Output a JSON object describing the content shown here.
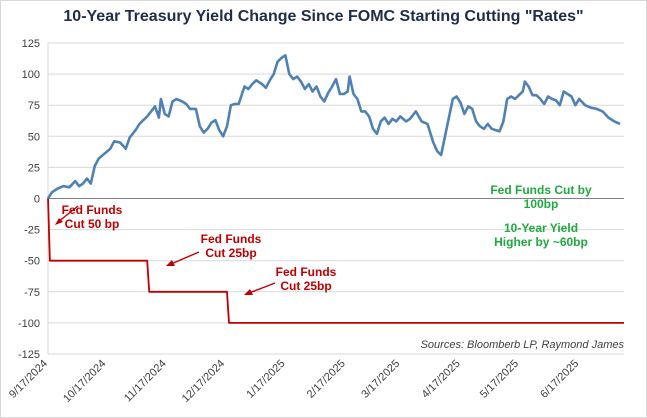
{
  "chart_data": {
    "type": "line",
    "title": "10-Year Treasury Yield Change Since FOMC Starting Cutting \"Rates\"",
    "ylim": [
      -125,
      125
    ],
    "yticks": [
      125,
      100,
      75,
      50,
      25,
      0,
      -25,
      -50,
      -75,
      -100,
      -125
    ],
    "xlim": [
      "2024-09-17",
      "2025-07-10"
    ],
    "xticks": [
      "9/17/2024",
      "10/17/2024",
      "11/17/2024",
      "12/17/2024",
      "1/17/2025",
      "2/17/2025",
      "3/17/2025",
      "4/17/2025",
      "5/17/2025",
      "6/17/2025"
    ],
    "grid": true,
    "source": "Sources: Bloomberb LP, Raymond James",
    "series": [
      {
        "color": "#4f81b5",
        "points": [
          [
            "2024-09-17",
            0
          ],
          [
            "2024-09-19",
            5
          ],
          [
            "2024-09-22",
            8
          ],
          [
            "2024-09-25",
            10
          ],
          [
            "2024-09-28",
            9
          ],
          [
            "2024-10-01",
            14
          ],
          [
            "2024-10-03",
            10
          ],
          [
            "2024-10-05",
            12
          ],
          [
            "2024-10-07",
            16
          ],
          [
            "2024-10-09",
            12
          ],
          [
            "2024-10-11",
            26
          ],
          [
            "2024-10-13",
            32
          ],
          [
            "2024-10-16",
            36
          ],
          [
            "2024-10-19",
            40
          ],
          [
            "2024-10-21",
            46
          ],
          [
            "2024-10-24",
            45
          ],
          [
            "2024-10-27",
            40
          ],
          [
            "2024-10-29",
            49
          ],
          [
            "2024-11-01",
            55
          ],
          [
            "2024-11-03",
            60
          ],
          [
            "2024-11-05",
            63
          ],
          [
            "2024-11-07",
            66
          ],
          [
            "2024-11-09",
            70
          ],
          [
            "2024-11-11",
            74
          ],
          [
            "2024-11-13",
            65
          ],
          [
            "2024-11-14",
            80
          ],
          [
            "2024-11-16",
            68
          ],
          [
            "2024-11-18",
            66
          ],
          [
            "2024-11-20",
            78
          ],
          [
            "2024-11-22",
            80
          ],
          [
            "2024-11-25",
            78
          ],
          [
            "2024-11-27",
            76
          ],
          [
            "2024-11-29",
            72
          ],
          [
            "2024-12-02",
            72
          ],
          [
            "2024-12-04",
            58
          ],
          [
            "2024-12-06",
            53
          ],
          [
            "2024-12-08",
            56
          ],
          [
            "2024-12-10",
            61
          ],
          [
            "2024-12-12",
            63
          ],
          [
            "2024-12-14",
            55
          ],
          [
            "2024-12-16",
            50
          ],
          [
            "2024-12-18",
            58
          ],
          [
            "2024-12-20",
            75
          ],
          [
            "2024-12-22",
            76
          ],
          [
            "2024-12-24",
            76
          ],
          [
            "2024-12-27",
            90
          ],
          [
            "2024-12-29",
            88
          ],
          [
            "2024-12-31",
            92
          ],
          [
            "2025-01-02",
            95
          ],
          [
            "2025-01-05",
            92
          ],
          [
            "2025-01-07",
            89
          ],
          [
            "2025-01-09",
            95
          ],
          [
            "2025-01-11",
            100
          ],
          [
            "2025-01-13",
            110
          ],
          [
            "2025-01-15",
            113
          ],
          [
            "2025-01-17",
            115
          ],
          [
            "2025-01-19",
            100
          ],
          [
            "2025-01-21",
            96
          ],
          [
            "2025-01-23",
            98
          ],
          [
            "2025-01-25",
            94
          ],
          [
            "2025-01-27",
            88
          ],
          [
            "2025-01-29",
            92
          ],
          [
            "2025-01-31",
            86
          ],
          [
            "2025-02-02",
            90
          ],
          [
            "2025-02-04",
            82
          ],
          [
            "2025-02-06",
            78
          ],
          [
            "2025-02-08",
            85
          ],
          [
            "2025-02-10",
            90
          ],
          [
            "2025-02-12",
            96
          ],
          [
            "2025-02-14",
            84
          ],
          [
            "2025-02-16",
            84
          ],
          [
            "2025-02-18",
            86
          ],
          [
            "2025-02-19",
            98
          ],
          [
            "2025-02-21",
            84
          ],
          [
            "2025-02-23",
            80
          ],
          [
            "2025-02-25",
            70
          ],
          [
            "2025-02-27",
            70
          ],
          [
            "2025-03-01",
            66
          ],
          [
            "2025-03-03",
            56
          ],
          [
            "2025-03-05",
            52
          ],
          [
            "2025-03-07",
            62
          ],
          [
            "2025-03-09",
            65
          ],
          [
            "2025-03-11",
            60
          ],
          [
            "2025-03-13",
            64
          ],
          [
            "2025-03-15",
            62
          ],
          [
            "2025-03-17",
            66
          ],
          [
            "2025-03-20",
            62
          ],
          [
            "2025-03-22",
            64
          ],
          [
            "2025-03-25",
            70
          ],
          [
            "2025-03-28",
            62
          ],
          [
            "2025-03-31",
            60
          ],
          [
            "2025-04-03",
            45
          ],
          [
            "2025-04-05",
            38
          ],
          [
            "2025-04-07",
            35
          ],
          [
            "2025-04-09",
            50
          ],
          [
            "2025-04-11",
            65
          ],
          [
            "2025-04-13",
            80
          ],
          [
            "2025-04-15",
            82
          ],
          [
            "2025-04-17",
            77
          ],
          [
            "2025-04-19",
            68
          ],
          [
            "2025-04-21",
            74
          ],
          [
            "2025-04-23",
            72
          ],
          [
            "2025-04-25",
            62
          ],
          [
            "2025-04-27",
            58
          ],
          [
            "2025-04-29",
            56
          ],
          [
            "2025-05-01",
            60
          ],
          [
            "2025-05-03",
            56
          ],
          [
            "2025-05-05",
            55
          ],
          [
            "2025-05-07",
            54
          ],
          [
            "2025-05-09",
            62
          ],
          [
            "2025-05-11",
            80
          ],
          [
            "2025-05-13",
            82
          ],
          [
            "2025-05-15",
            80
          ],
          [
            "2025-05-17",
            83
          ],
          [
            "2025-05-19",
            86
          ],
          [
            "2025-05-20",
            94
          ],
          [
            "2025-05-22",
            90
          ],
          [
            "2025-05-24",
            83
          ],
          [
            "2025-05-26",
            83
          ],
          [
            "2025-05-28",
            80
          ],
          [
            "2025-05-30",
            76
          ],
          [
            "2025-06-01",
            82
          ],
          [
            "2025-06-03",
            80
          ],
          [
            "2025-06-05",
            79
          ],
          [
            "2025-06-07",
            75
          ],
          [
            "2025-06-09",
            86
          ],
          [
            "2025-06-11",
            84
          ],
          [
            "2025-06-13",
            82
          ],
          [
            "2025-06-15",
            75
          ],
          [
            "2025-06-17",
            80
          ],
          [
            "2025-06-20",
            75
          ],
          [
            "2025-06-23",
            73
          ],
          [
            "2025-06-26",
            72
          ],
          [
            "2025-06-29",
            70
          ],
          [
            "2025-07-02",
            65
          ],
          [
            "2025-07-05",
            62
          ],
          [
            "2025-07-08",
            60
          ]
        ]
      },
      {
        "color": "#c00000",
        "step": true,
        "points": [
          [
            "2024-09-17",
            0
          ],
          [
            "2024-09-18",
            -50
          ],
          [
            "2024-11-07",
            -50
          ],
          [
            "2024-11-08",
            -75
          ],
          [
            "2024-12-18",
            -75
          ],
          [
            "2024-12-19",
            -100
          ],
          [
            "2025-07-10",
            -100
          ]
        ]
      }
    ],
    "annotations": [
      {
        "id": "cut1",
        "lines": [
          "Fed Funds",
          "Cut 50 bp"
        ],
        "color": "#c00000"
      },
      {
        "id": "cut2",
        "lines": [
          "Fed Funds",
          "Cut 25bp"
        ],
        "color": "#c00000"
      },
      {
        "id": "cut3",
        "lines": [
          "Fed Funds",
          "Cut 25bp"
        ],
        "color": "#c00000"
      },
      {
        "id": "summary1",
        "lines": [
          "Fed Funds Cut by",
          "100bp"
        ],
        "color": "#1faa3d"
      },
      {
        "id": "summary2",
        "lines": [
          "10-Year Yield",
          "Higher by ~60bp"
        ],
        "color": "#1faa3d"
      }
    ]
  }
}
